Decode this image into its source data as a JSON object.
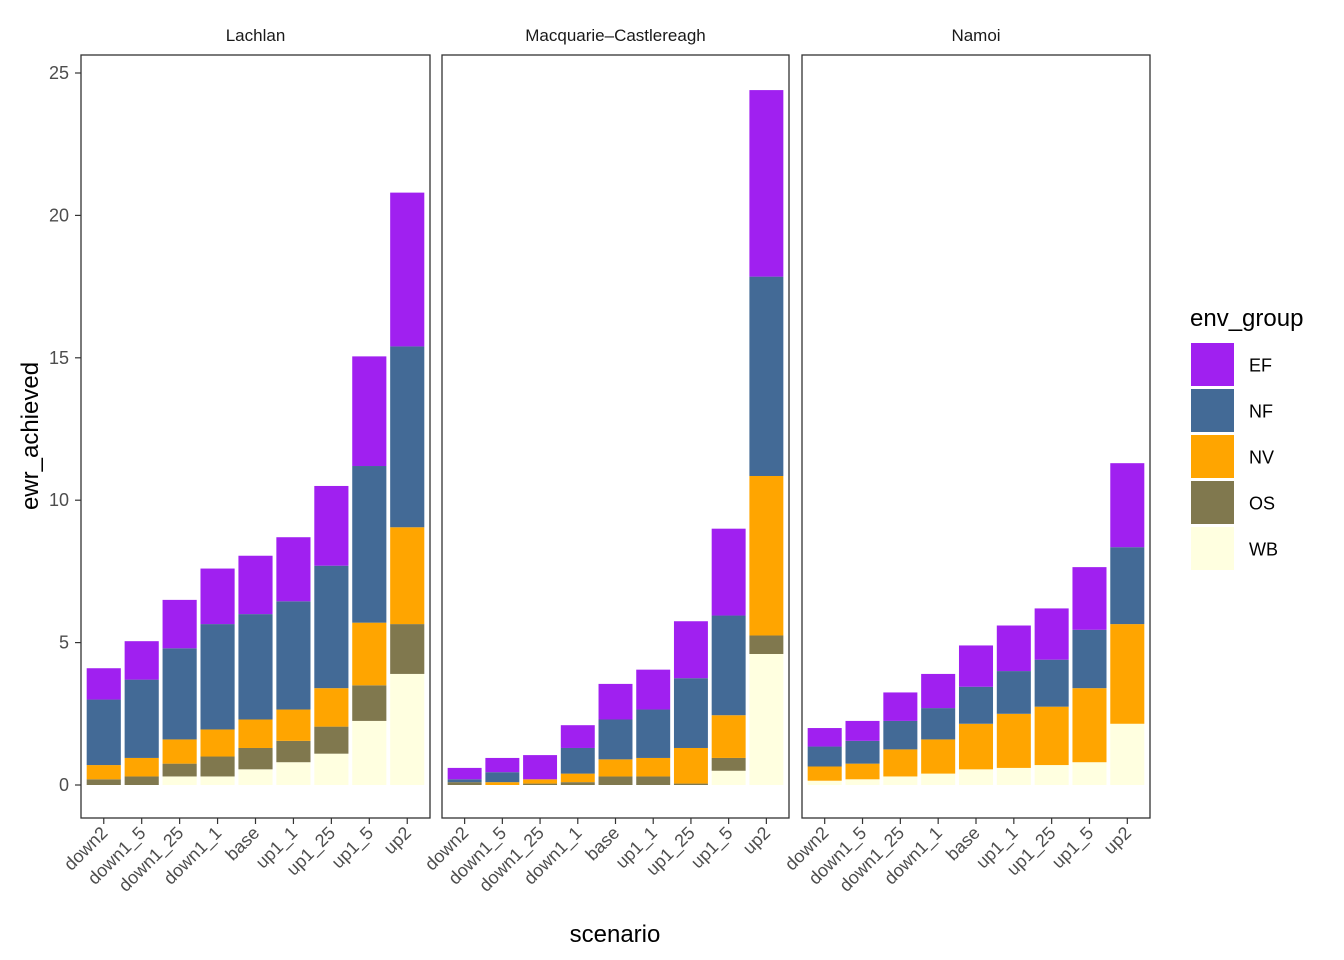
{
  "chart_data": {
    "type": "bar",
    "stacked": true,
    "xlabel": "scenario",
    "ylabel": "ewr_achieved",
    "ylim": [
      0,
      25
    ],
    "yticks": [
      0,
      5,
      10,
      15,
      20,
      25
    ],
    "grid": false,
    "legend_title": "env_group",
    "legend_position": "right",
    "categories": [
      "down2",
      "down1_5",
      "down1_25",
      "down1_1",
      "base",
      "up1_1",
      "up1_25",
      "up1_5",
      "up2"
    ],
    "groups": [
      {
        "name": "WB",
        "color": "#FFFFE0"
      },
      {
        "name": "OS",
        "color": "#80784E"
      },
      {
        "name": "NV",
        "color": "#FFA500"
      },
      {
        "name": "NF",
        "color": "#436A96"
      },
      {
        "name": "EF",
        "color": "#A020F0"
      }
    ],
    "legend_order": [
      "EF",
      "NF",
      "NV",
      "OS",
      "WB"
    ],
    "facets": [
      {
        "title": "Lachlan",
        "values": {
          "WB": [
            0.0,
            0.0,
            0.3,
            0.3,
            0.55,
            0.8,
            1.1,
            2.25,
            3.9
          ],
          "OS": [
            0.2,
            0.3,
            0.45,
            0.7,
            0.75,
            0.75,
            0.95,
            1.25,
            1.75
          ],
          "NV": [
            0.5,
            0.65,
            0.85,
            0.95,
            1.0,
            1.1,
            1.35,
            2.2,
            3.4
          ],
          "NF": [
            2.3,
            2.75,
            3.2,
            3.7,
            3.7,
            3.8,
            4.3,
            5.5,
            6.35
          ],
          "EF": [
            1.1,
            1.35,
            1.7,
            1.95,
            2.05,
            2.25,
            2.8,
            3.85,
            5.4
          ]
        }
      },
      {
        "title": "Macquarie–Castlereagh",
        "values": {
          "WB": [
            0.0,
            0.0,
            0.0,
            0.0,
            0.0,
            0.0,
            0.0,
            0.5,
            4.6
          ],
          "OS": [
            0.1,
            0.0,
            0.05,
            0.1,
            0.3,
            0.3,
            0.05,
            0.45,
            0.65
          ],
          "NV": [
            0.0,
            0.1,
            0.15,
            0.3,
            0.6,
            0.65,
            1.25,
            1.5,
            5.6
          ],
          "NF": [
            0.1,
            0.35,
            0.0,
            0.9,
            1.4,
            1.7,
            2.45,
            3.5,
            7.0
          ],
          "EF": [
            0.4,
            0.5,
            0.85,
            0.8,
            1.25,
            1.4,
            2.0,
            3.05,
            6.55
          ]
        }
      },
      {
        "title": "Namoi",
        "values": {
          "WB": [
            0.15,
            0.2,
            0.3,
            0.4,
            0.55,
            0.6,
            0.7,
            0.8,
            2.15
          ],
          "OS": [
            0.0,
            0.0,
            0.0,
            0.0,
            0.0,
            0.0,
            0.0,
            0.0,
            0.0
          ],
          "NV": [
            0.5,
            0.55,
            0.95,
            1.2,
            1.6,
            1.9,
            2.05,
            2.6,
            3.5
          ],
          "NF": [
            0.7,
            0.8,
            1.0,
            1.1,
            1.3,
            1.5,
            1.65,
            2.05,
            2.7
          ],
          "EF": [
            0.65,
            0.7,
            1.0,
            1.2,
            1.45,
            1.6,
            1.8,
            2.2,
            2.95
          ]
        }
      }
    ]
  }
}
